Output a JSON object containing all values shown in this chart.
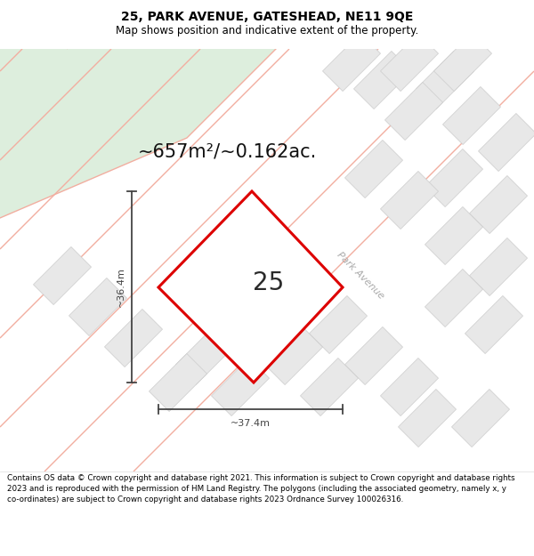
{
  "title_line1": "25, PARK AVENUE, GATESHEAD, NE11 9QE",
  "title_line2": "Map shows position and indicative extent of the property.",
  "area_label": "~657m²/~0.162ac.",
  "plot_number": "25",
  "width_label": "~37.4m",
  "height_label": "~36.4m",
  "footer_text": "Contains OS data © Crown copyright and database right 2021. This information is subject to Crown copyright and database rights 2023 and is reproduced with the permission of HM Land Registry. The polygons (including the associated geometry, namely x, y co-ordinates) are subject to Crown copyright and database rights 2023 Ordnance Survey 100026316.",
  "map_bg": "#ffffff",
  "green_area_color": "#ddeedd",
  "building_fill_color": "#e8e8e8",
  "building_edge_color": "#cccccc",
  "plot_outline_color": "#dd0000",
  "dim_line_color": "#444444",
  "street_label": "Park Avenue",
  "road_line_color": "#f2aea0",
  "title_color": "#000000",
  "footer_color": "#000000",
  "title_fontsize": 10,
  "subtitle_fontsize": 8.5,
  "area_fontsize": 15,
  "plot_num_fontsize": 20,
  "dim_fontsize": 8,
  "street_fontsize": 8,
  "footer_fontsize": 6.3
}
